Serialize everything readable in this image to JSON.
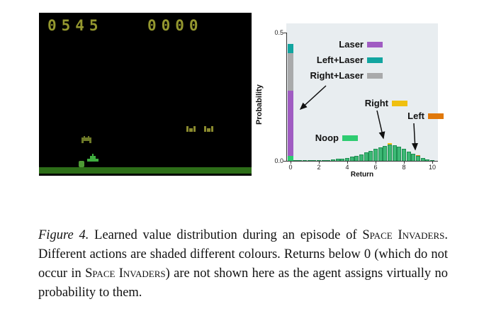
{
  "game": {
    "score_left": "0545",
    "score_right": "0000",
    "colors": {
      "score": "#94972f",
      "ground": "#2d6e18",
      "cannon": "#3fae3f",
      "invader": "#6e7a28",
      "saucer": "#8a8a2e",
      "blob": "#4e9a35"
    }
  },
  "chart_data": {
    "type": "bar",
    "title": "",
    "xlabel": "Return",
    "ylabel": "Probability",
    "xlim": [
      0,
      10.6
    ],
    "ylim": [
      0,
      0.5
    ],
    "x_ticks": [
      "0",
      "2",
      "4",
      "6",
      "8",
      "10"
    ],
    "y_ticks": [
      "0.0",
      "0.5"
    ],
    "grid": false,
    "background": "#e8edf0",
    "bar_color": "#3cb874",
    "bar_edge_color": "#1f8f52",
    "legend_position": "inside top-right",
    "legend": [
      {
        "label": "Laser",
        "color": "#a05cc2"
      },
      {
        "label": "Left+Laser",
        "color": "#12a5a0"
      },
      {
        "label": "Right+Laser",
        "color": "#a9aaab"
      },
      {
        "label": "Right",
        "color": "#f0c010"
      },
      {
        "label": "Left",
        "color": "#e0780a"
      },
      {
        "label": "Noop",
        "color": "#2ecc71"
      }
    ],
    "stacked_bar_at_zero": {
      "x": 0,
      "total": 0.456,
      "segments_bottom_to_top": [
        {
          "action": "Noop",
          "color": "#2ecc71",
          "value": 0.018
        },
        {
          "action": "Laser",
          "color": "#a05cc2",
          "value": 0.255
        },
        {
          "action": "Right+Laser",
          "color": "#a9aaab",
          "value": 0.148
        },
        {
          "action": "Left+Laser",
          "color": "#12a5a0",
          "value": 0.035
        }
      ]
    },
    "bars": [
      {
        "x": 0.33,
        "h": 0.003
      },
      {
        "x": 0.67,
        "h": 0.002
      },
      {
        "x": 1.0,
        "h": 0.002
      },
      {
        "x": 1.33,
        "h": 0.002
      },
      {
        "x": 1.67,
        "h": 0.002
      },
      {
        "x": 2.0,
        "h": 0.002
      },
      {
        "x": 2.33,
        "h": 0.003
      },
      {
        "x": 2.67,
        "h": 0.004
      },
      {
        "x": 3.0,
        "h": 0.005
      },
      {
        "x": 3.33,
        "h": 0.007
      },
      {
        "x": 3.67,
        "h": 0.009
      },
      {
        "x": 4.0,
        "h": 0.012
      },
      {
        "x": 4.33,
        "h": 0.016
      },
      {
        "x": 4.67,
        "h": 0.02
      },
      {
        "x": 5.0,
        "h": 0.026
      },
      {
        "x": 5.33,
        "h": 0.032
      },
      {
        "x": 5.67,
        "h": 0.039
      },
      {
        "x": 6.0,
        "h": 0.046
      },
      {
        "x": 6.33,
        "h": 0.053
      },
      {
        "x": 6.67,
        "h": 0.059
      },
      {
        "x": 7.0,
        "h": 0.063,
        "cap_color": "#f0c010",
        "cap_h": 0.006
      },
      {
        "x": 7.33,
        "h": 0.061
      },
      {
        "x": 7.67,
        "h": 0.055
      },
      {
        "x": 8.0,
        "h": 0.047
      },
      {
        "x": 8.33,
        "h": 0.037
      },
      {
        "x": 8.67,
        "h": 0.027
      },
      {
        "x": 9.0,
        "h": 0.018,
        "cap_color": "#e0780a",
        "cap_h": 0.005
      },
      {
        "x": 9.33,
        "h": 0.011
      },
      {
        "x": 9.67,
        "h": 0.006
      },
      {
        "x": 10.0,
        "h": 0.003
      }
    ]
  },
  "caption": {
    "segments": [
      {
        "text": "Figure 4.",
        "style": "italic"
      },
      {
        "text": " Learned value distribution during an episode of ",
        "style": "normal"
      },
      {
        "text": "Space Invaders",
        "style": "smallcaps"
      },
      {
        "text": ". Different actions are shaded different colours. Returns below 0 (which do not occur in ",
        "style": "normal"
      },
      {
        "text": "Space Invaders",
        "style": "smallcaps"
      },
      {
        "text": ") are not shown here as the agent assigns virtually no probability to them.",
        "style": "normal"
      }
    ]
  }
}
